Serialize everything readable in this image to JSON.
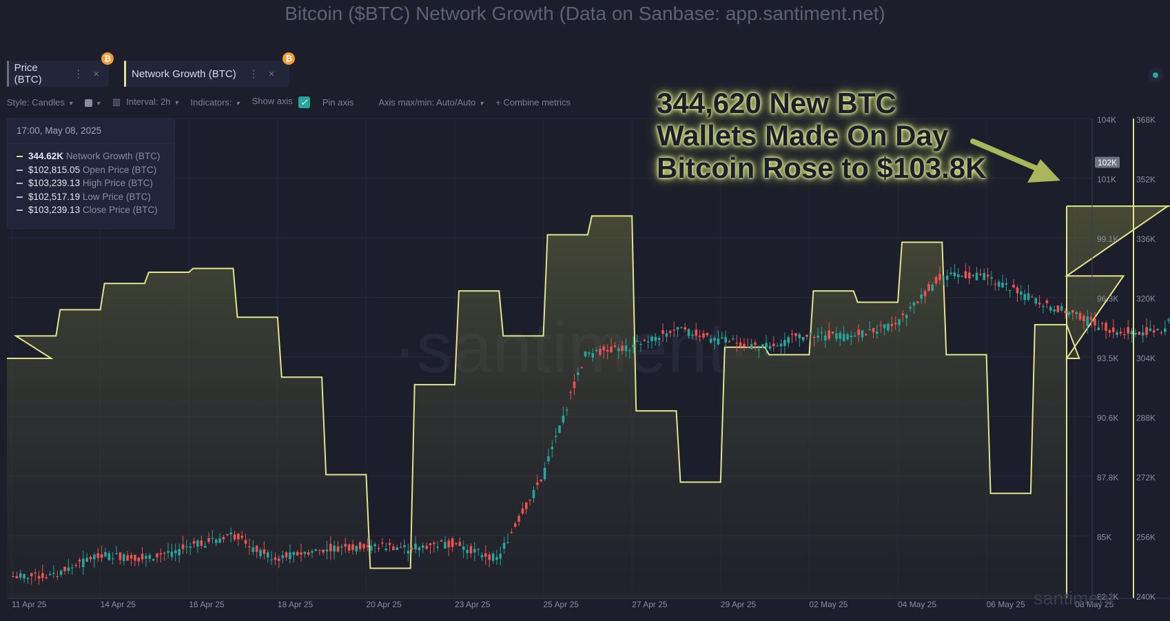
{
  "title": "Bitcoin ($BTC) Network Growth (Data on Sanbase: app.santiment.net)",
  "tabs": [
    {
      "label": "Price (BTC)",
      "dots": "⋮",
      "close": "×",
      "badge": "₿",
      "bar_color": "#6b6f82"
    },
    {
      "label": "Network Growth (BTC)",
      "dots": "⋮",
      "close": "×",
      "badge": "₿",
      "bar_color": "#e3e58c"
    }
  ],
  "toolbar": {
    "style": "Style: Candles",
    "interval": "Interval: 2h",
    "indicators": "Indicators:",
    "show_axis": "Show axis",
    "pin_axis": "Pin axis",
    "axis_maxmin": "Axis max/min: Auto/Auto",
    "combine": "+ Combine metrics"
  },
  "legend": {
    "date": "17:00, May 08, 2025",
    "rows": [
      {
        "value": "344.62K",
        "name": "Network Growth (BTC)",
        "color": "#e3e58c"
      },
      {
        "value": "$102,815.05",
        "name": "Open Price (BTC)",
        "color": "#b7bac8"
      },
      {
        "value": "$103,239.13",
        "name": "High Price (BTC)",
        "color": "#b7bac8"
      },
      {
        "value": "$102,517.19",
        "name": "Low Price (BTC)",
        "color": "#b7bac8"
      },
      {
        "value": "$103,239.13",
        "name": "Close Price (BTC)",
        "color": "#b7bac8"
      }
    ]
  },
  "annotation": {
    "lines": [
      "344,620 New BTC",
      "Wallets Made On Day",
      "Bitcoin Rose to $103.8K"
    ]
  },
  "watermark": "·santiment·",
  "watermark_corner": "santiment",
  "price_marker": "102K",
  "colors": {
    "up": "#26a69a",
    "down": "#ef5350",
    "network_growth": "#e3e58c",
    "background": "#1c1e2b",
    "arrow": "#a9b65a"
  },
  "chart_data": {
    "type": "line",
    "x_tick_labels": [
      "11 Apr 25",
      "14 Apr 25",
      "16 Apr 25",
      "18 Apr 25",
      "20 Apr 25",
      "23 Apr 25",
      "25 Apr 25",
      "27 Apr 25",
      "29 Apr 25",
      "02 May 25",
      "04 May 25",
      "06 May 25",
      "08 May 25"
    ],
    "price_axis_labels": [
      "104K",
      "101K",
      "99.1K",
      "96.3K",
      "93.5K",
      "90.6K",
      "87.8K",
      "85K",
      "82.2K"
    ],
    "growth_axis_labels": [
      "368K",
      "352K",
      "336K",
      "320K",
      "304K",
      "288K",
      "272K",
      "256K",
      "240K"
    ],
    "price_range": [
      82200,
      104300
    ],
    "growth_range": [
      240000,
      368000
    ],
    "series": [
      {
        "name": "Network Growth (BTC)",
        "style": "step-area",
        "x": [
          "2025-04-10",
          "2025-04-11",
          "2025-04-12",
          "2025-04-13",
          "2025-04-14",
          "2025-04-15",
          "2025-04-16",
          "2025-04-17",
          "2025-04-18",
          "2025-04-19",
          "2025-04-20",
          "2025-04-21",
          "2025-04-22",
          "2025-04-23",
          "2025-04-24",
          "2025-04-25",
          "2025-04-26",
          "2025-04-27",
          "2025-04-28",
          "2025-04-29",
          "2025-04-30",
          "2025-05-01",
          "2025-05-02",
          "2025-05-03",
          "2025-05-04",
          "2025-05-05",
          "2025-05-06",
          "2025-05-07",
          "2025-05-08"
        ],
        "values": [
          304000,
          310000,
          317000,
          324000,
          327000,
          328000,
          315000,
          299000,
          273000,
          248000,
          297000,
          322000,
          310000,
          337000,
          342000,
          290000,
          271000,
          307000,
          305000,
          322000,
          319000,
          335000,
          305000,
          268000,
          313000,
          304000,
          326000,
          344620,
          344620
        ]
      },
      {
        "name": "Price (BTC)",
        "style": "candles",
        "x": [
          "2025-04-11",
          "2025-04-12",
          "2025-04-13",
          "2025-04-14",
          "2025-04-15",
          "2025-04-16",
          "2025-04-17",
          "2025-04-18",
          "2025-04-19",
          "2025-04-20",
          "2025-04-21",
          "2025-04-22",
          "2025-04-23",
          "2025-04-24",
          "2025-04-25",
          "2025-04-26",
          "2025-04-27",
          "2025-04-28",
          "2025-04-29",
          "2025-04-30",
          "2025-05-01",
          "2025-05-02",
          "2025-05-03",
          "2025-05-04",
          "2025-05-05",
          "2025-05-06",
          "2025-05-07",
          "2025-05-08"
        ],
        "values": [
          83200,
          84200,
          84000,
          84500,
          85100,
          84000,
          84400,
          84600,
          84500,
          84700,
          84000,
          87600,
          93300,
          93600,
          94400,
          94000,
          93600,
          94200,
          94100,
          94600,
          96800,
          96900,
          95900,
          95100,
          94300,
          94300,
          97200,
          102815
        ]
      }
    ]
  }
}
